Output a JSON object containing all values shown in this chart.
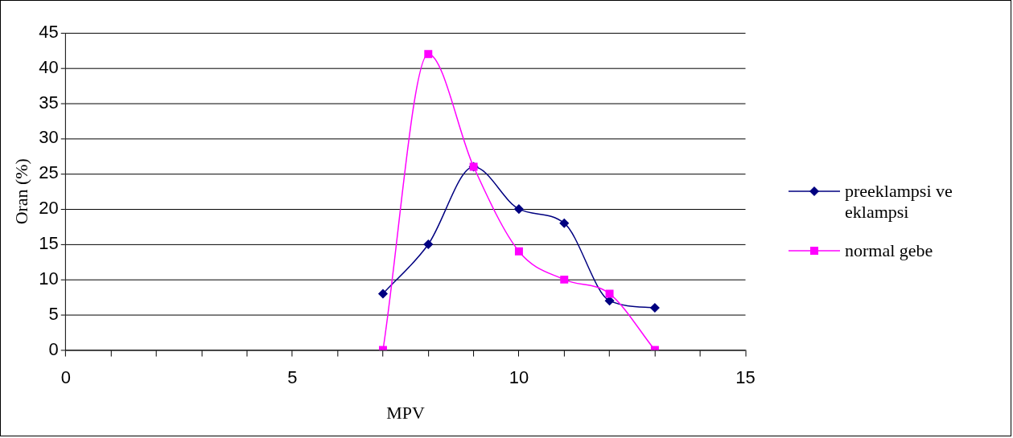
{
  "chart_data": {
    "type": "line",
    "xlabel": "MPV",
    "ylabel": "Oran (%)",
    "x": [
      7,
      8,
      9,
      10,
      11,
      12,
      13
    ],
    "series": [
      {
        "name": "preeklampsi ve eklampsi",
        "color": "#000080",
        "marker": "diamond",
        "values": [
          8,
          15,
          26,
          20,
          18,
          7,
          6
        ]
      },
      {
        "name": "normal gebe",
        "color": "#ff00ff",
        "marker": "square",
        "values": [
          0,
          42,
          26,
          14,
          10,
          8,
          0
        ]
      }
    ],
    "xlim": [
      0,
      15
    ],
    "xticks": [
      0,
      {
        "value": 1,
        "label": null
      },
      {
        "value": 2,
        "label": null
      },
      {
        "value": 3,
        "label": null
      },
      {
        "value": 4,
        "label": null
      },
      5,
      {
        "value": 6,
        "label": null
      },
      {
        "value": 7,
        "label": null
      },
      {
        "value": 8,
        "label": null
      },
      {
        "value": 9,
        "label": null
      },
      10,
      {
        "value": 11,
        "label": null
      },
      {
        "value": 12,
        "label": null
      },
      {
        "value": 13,
        "label": null
      },
      {
        "value": 14,
        "label": null
      },
      15
    ],
    "ylim": [
      0,
      45
    ],
    "yticks": [
      0,
      5,
      10,
      15,
      20,
      25,
      30,
      35,
      40,
      45
    ],
    "grid": "y",
    "legend": "right"
  }
}
